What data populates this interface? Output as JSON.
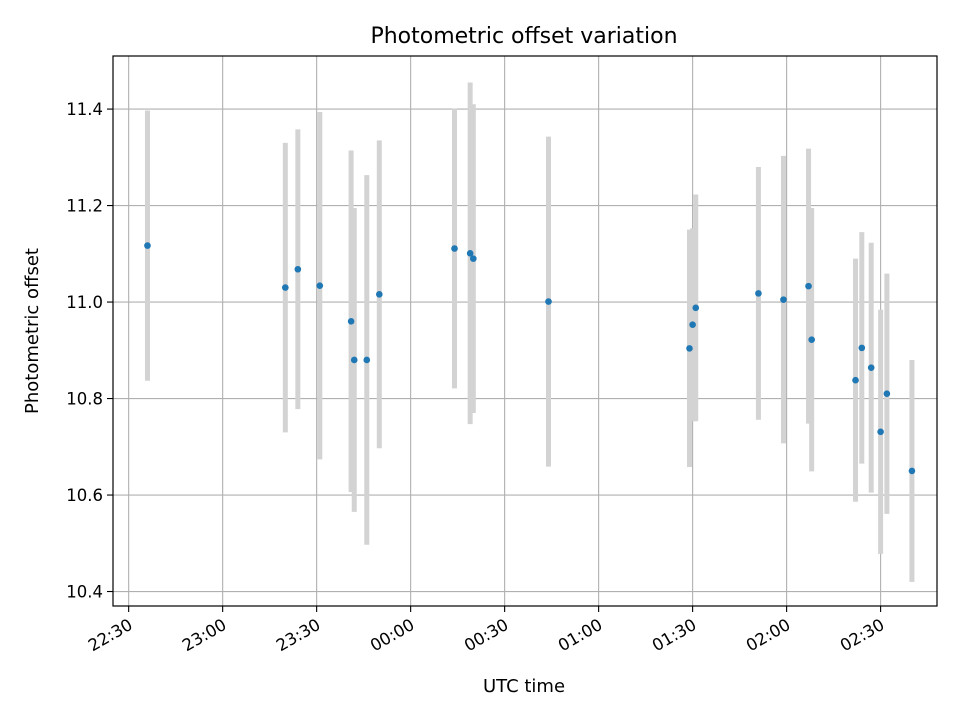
{
  "chart_data": {
    "type": "scatter",
    "title": "Photometric offset variation",
    "xlabel": "UTC time",
    "ylabel": "Photometric offset",
    "x_axis_type": "time",
    "xlim": [
      "22:25",
      "02:48"
    ],
    "ylim": [
      10.37,
      11.51
    ],
    "x_ticks": [
      "22:30",
      "23:00",
      "23:30",
      "00:00",
      "00:30",
      "01:00",
      "01:30",
      "02:00",
      "02:30"
    ],
    "y_ticks": [
      "10.4",
      "10.6",
      "10.8",
      "11.0",
      "11.2",
      "11.4"
    ],
    "grid": true,
    "colors": {
      "point": "#1f77b4",
      "errorbar": "#d3d3d3",
      "grid": "#b0b0b0"
    },
    "series": [
      {
        "points": [
          {
            "x": "22:36",
            "y": 11.117,
            "err": 0.28
          },
          {
            "x": "23:20",
            "y": 11.03,
            "err": 0.3
          },
          {
            "x": "23:24",
            "y": 11.068,
            "err": 0.29
          },
          {
            "x": "23:31",
            "y": 11.034,
            "err": 0.36
          },
          {
            "x": "23:41",
            "y": 10.96,
            "err": 0.354
          },
          {
            "x": "23:42",
            "y": 10.88,
            "err": 0.315
          },
          {
            "x": "23:46",
            "y": 10.88,
            "err": 0.383
          },
          {
            "x": "23:50",
            "y": 11.016,
            "err": 0.319
          },
          {
            "x": "00:14",
            "y": 11.111,
            "err": 0.29
          },
          {
            "x": "00:19",
            "y": 11.101,
            "err": 0.354
          },
          {
            "x": "00:20",
            "y": 11.09,
            "err": 0.32
          },
          {
            "x": "00:44",
            "y": 11.001,
            "err": 0.342
          },
          {
            "x": "01:29",
            "y": 10.904,
            "err": 0.246
          },
          {
            "x": "01:30",
            "y": 10.953,
            "err": 0.2
          },
          {
            "x": "01:31",
            "y": 10.988,
            "err": 0.235
          },
          {
            "x": "01:51",
            "y": 11.018,
            "err": 0.262
          },
          {
            "x": "01:59",
            "y": 11.005,
            "err": 0.298
          },
          {
            "x": "02:07",
            "y": 11.033,
            "err": 0.285
          },
          {
            "x": "02:08",
            "y": 10.922,
            "err": 0.273
          },
          {
            "x": "02:22",
            "y": 10.838,
            "err": 0.252
          },
          {
            "x": "02:24",
            "y": 10.905,
            "err": 0.24
          },
          {
            "x": "02:27",
            "y": 10.864,
            "err": 0.259
          },
          {
            "x": "02:30",
            "y": 10.731,
            "err": 0.253
          },
          {
            "x": "02:32",
            "y": 10.81,
            "err": 0.249
          },
          {
            "x": "02:40",
            "y": 10.65,
            "err": 0.23
          }
        ]
      }
    ]
  }
}
